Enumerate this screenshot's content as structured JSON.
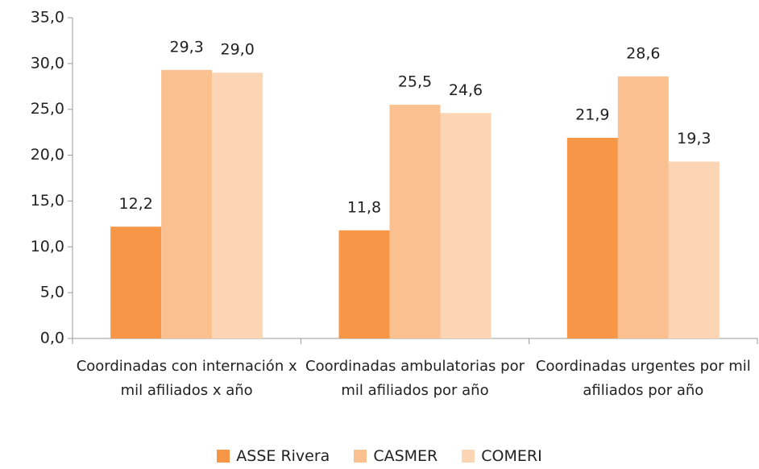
{
  "chart_data": {
    "type": "bar",
    "categories": [
      "Coordinadas con internación x mil afiliados x año",
      "Coordinadas ambulatorias por mil afiliados por año",
      "Coordinadas urgentes por mil afiliados por año"
    ],
    "series": [
      {
        "name": "ASSE Rivera",
        "color": "#f79646",
        "values": [
          12.2,
          11.8,
          21.9
        ],
        "value_labels": [
          "12,2",
          "11,8",
          "21,9"
        ]
      },
      {
        "name": "CASMER",
        "color": "#fac08f",
        "values": [
          29.3,
          25.5,
          28.6
        ],
        "value_labels": [
          "29,3",
          "25,5",
          "28,6"
        ]
      },
      {
        "name": "COMERI",
        "color": "#fcd5b5",
        "values": [
          29.0,
          24.6,
          19.3
        ],
        "value_labels": [
          "29,0",
          "24,6",
          "19,3"
        ]
      }
    ],
    "ylim": [
      0,
      35
    ],
    "yticks": [
      {
        "value": 0,
        "label": "0,0"
      },
      {
        "value": 5,
        "label": "5,0"
      },
      {
        "value": 10,
        "label": "10,0"
      },
      {
        "value": 15,
        "label": "15,0"
      },
      {
        "value": 20,
        "label": "20,0"
      },
      {
        "value": 25,
        "label": "25,0"
      },
      {
        "value": 30,
        "label": "30,0"
      },
      {
        "value": 35,
        "label": "35,0"
      }
    ],
    "grid": false,
    "legend": "bottom"
  }
}
